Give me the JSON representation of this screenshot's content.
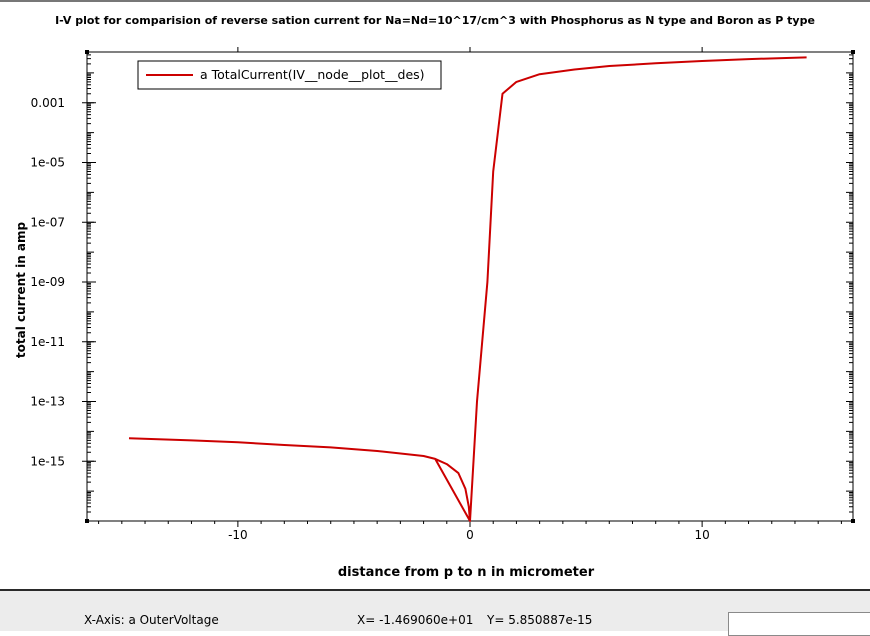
{
  "title": "I-V plot for comparision of reverse sation current for Na=Nd=10^17/cm^3 with Phosphorus as N type and Boron as P type",
  "status": {
    "xaxis_label": "X-Axis: a OuterVoltage",
    "x_readout": "X= -1.469060e+01",
    "y_readout": "Y= 5.850887e-15"
  },
  "chart_data": {
    "type": "line",
    "title": "I-V plot for comparision of reverse sation current for Na=Nd=10^17/cm^3 with Phosphorus as N type and Boron as P type",
    "xlabel": "distance from p to n in micrometer",
    "ylabel": "total current in amp",
    "xlim": [
      -16.5,
      16.5
    ],
    "ylim": [
      1e-17,
      0.05
    ],
    "yscale": "log",
    "grid": false,
    "legend_position": "top-left",
    "x_ticks": [
      -10,
      0,
      10
    ],
    "x_tick_labels": [
      "-10",
      "0",
      "10"
    ],
    "y_ticks": [
      0.001,
      1e-05,
      1e-07,
      1e-09,
      1e-11,
      1e-13,
      1e-15
    ],
    "y_tick_labels": [
      "0.001",
      "1e-05",
      "1e-07",
      "1e-09",
      "1e-11",
      "1e-13",
      "1e-15"
    ],
    "series": [
      {
        "name": "a TotalCurrent(IV__node__plot__des)",
        "color": "#cc0000",
        "x": [
          -14.69,
          -12,
          -10,
          -8,
          -6,
          -4,
          -2,
          -1.5,
          -1,
          -0.5,
          -0.2,
          -0.05,
          0,
          -1.5,
          0,
          0.3,
          0.75,
          1.0,
          1.4,
          2.0,
          3.0,
          4.5,
          6,
          8,
          10,
          12,
          14.5
        ],
        "y": [
          5.85e-15,
          5e-15,
          4.3e-15,
          3.5e-15,
          2.9e-15,
          2.2e-15,
          1.5e-15,
          1.2e-15,
          8e-16,
          4e-16,
          1.2e-16,
          3e-17,
          1e-17,
          1.2e-15,
          1e-17,
          1e-13,
          1e-09,
          5e-06,
          0.002,
          0.005,
          0.009,
          0.013,
          0.017,
          0.021,
          0.025,
          0.029,
          0.033
        ]
      }
    ]
  }
}
